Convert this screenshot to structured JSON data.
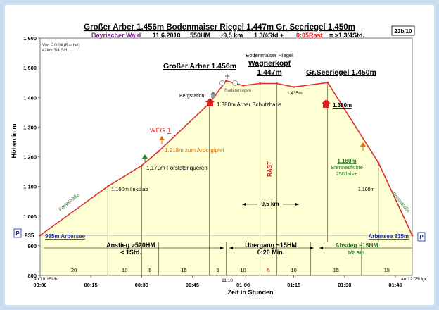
{
  "header": {
    "title": "Großer Arber 1.456m Bodenmaiser Riegel 1.447m Gr. Seeriegel 1.450m",
    "region": "Bayrischer Wald",
    "date": "11.6.2010",
    "hm": "550HM",
    "distance": "~9,5 km",
    "time_plus": "1 3/4Std.+",
    "rast": "0:05Rast",
    "total": "= >1 3/4Std.",
    "sheet": "23b/10"
  },
  "author": {
    "line1": "Von P.Gföll (Rachel)",
    "line2": "42km 3/4 Std."
  },
  "colors": {
    "profile": "#d93030",
    "fill": "#ffffd4",
    "title": "#000000",
    "region": "#7a2a8a",
    "orange": "#e07000",
    "green": "#2a7a2a",
    "blue": "#1a2ab0",
    "grid": "#cccccc"
  },
  "annotations": {
    "peak1": "Großer Arber 1.456m",
    "peak2_sub": "Bodenmaiser Riegel",
    "peak2_name": "Wagnerkopf",
    "peak2_alt": "1.447m",
    "peak3": "Gr.Seeriegel 1.450m",
    "bergstation": "Bergstation",
    "radaranlagen": "Radaranlagen",
    "schutzhaus": "1.380m Arber Schutzhaus",
    "seeriegel1380": "1.380m",
    "pt1435": "1.435m",
    "weg": "WEG",
    "weg_num": "1",
    "arbergipfel": "1.218m zum Arbergipfel",
    "forststr": "1.170m Forststsr.queren",
    "links": "1.100m links ab",
    "forststrasse_left": "Forststraße",
    "forststrasse_right": "Forststraße",
    "brennes_alt": "1.180m",
    "brennes_name": "Brennesfichte",
    "brennes_age": "250Jahre",
    "pt1100r": "1.100m",
    "rast_label": "RAST",
    "dist": "9,5 km",
    "arbersee_left": "935m Arbersee",
    "arbersee_right": "Arbersee 935m",
    "p": "P",
    "alt935": "935",
    "start_time": "ab 10:15Uhr",
    "end_time": "an 12:05Ugr"
  },
  "phases": [
    {
      "name": "Anstieg >520HM",
      "time": "< 1Std."
    },
    {
      "name": "Übergang ~15HM",
      "time": "0:20 Min."
    },
    {
      "name": "Abstieg ~15HM",
      "time": "1/2 Std."
    }
  ],
  "segments": [
    "20",
    "10",
    "5",
    "15",
    "5",
    "10",
    "5",
    "10",
    "15",
    "15"
  ],
  "mid_time": "11:10",
  "chart_data": {
    "type": "area",
    "xlabel": "Zeit in Stunden",
    "ylabel": "Höhen in m",
    "xlim": [
      0,
      110
    ],
    "ylim": [
      800,
      1600
    ],
    "xticks": [
      0,
      15,
      30,
      45,
      60,
      75,
      90,
      105
    ],
    "xtick_labels": [
      "00:00",
      "00:15",
      "00:30",
      "00:45",
      "01:00",
      "01:15",
      "01:30",
      "01:45"
    ],
    "yticks": [
      800,
      900,
      1000,
      1100,
      1200,
      1300,
      1400,
      1500,
      1600
    ],
    "ytick_labels": [
      "800",
      "900",
      "1 000",
      "1 100",
      "1 200",
      "1 300",
      "1 400",
      "1 500",
      "1 600"
    ],
    "grid": false,
    "series": [
      {
        "x": [
          0,
          20,
          30,
          35,
          50,
          55,
          60,
          65,
          70,
          75,
          85,
          100,
          110
        ],
        "y": [
          935,
          1100,
          1170,
          1218,
          1380,
          1456,
          1440,
          1447,
          1447,
          1435,
          1450,
          1180,
          935
        ]
      }
    ],
    "segment_boundaries": [
      20,
      30,
      35,
      50,
      55,
      65,
      70,
      80,
      95
    ]
  }
}
